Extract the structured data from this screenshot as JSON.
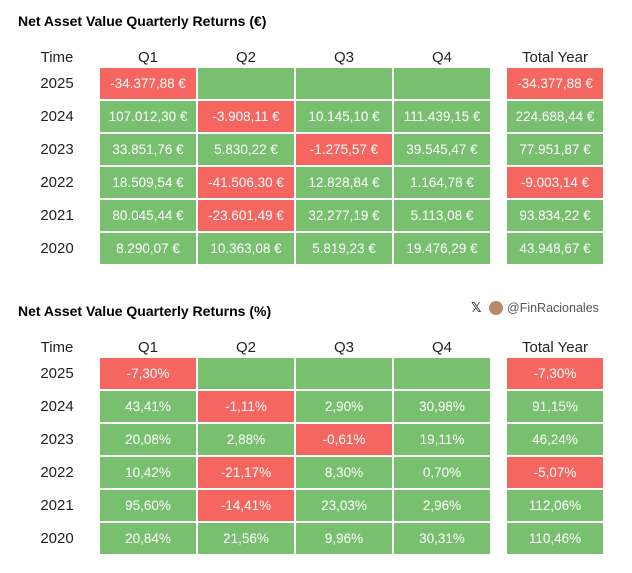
{
  "tables": [
    {
      "title": "Net Asset Value Quarterly Returns (€)",
      "headers": [
        "Time",
        "Q1",
        "Q2",
        "Q3",
        "Q4",
        "Total Year"
      ],
      "rows": [
        {
          "year": "2025",
          "cells": [
            "-34.377,88 €",
            null,
            null,
            null,
            "-34.377,88 €"
          ]
        },
        {
          "year": "2024",
          "cells": [
            "107.012,30 €",
            "-3.908,11 €",
            "10.145,10 €",
            "111.439,15 €",
            "224.688,44 €"
          ]
        },
        {
          "year": "2023",
          "cells": [
            "33.851,76 €",
            "5.830,22 €",
            "-1.275,57 €",
            "39.545,47 €",
            "77.951,87 €"
          ]
        },
        {
          "year": "2022",
          "cells": [
            "18.509,54 €",
            "-41.506,30 €",
            "12.828,84 €",
            "1.164,78 €",
            "-9.003,14 €"
          ]
        },
        {
          "year": "2021",
          "cells": [
            "80.045,44 €",
            "-23.601,49 €",
            "32.277,19 €",
            "5.113,08 €",
            "93.834,22 €"
          ]
        },
        {
          "year": "2020",
          "cells": [
            "8.290,07 €",
            "10.363,08 €",
            "5.819,23 €",
            "19.476,29 €",
            "43.948,67 €"
          ]
        }
      ]
    },
    {
      "title": "Net Asset Value Quarterly Returns (%)",
      "headers": [
        "Time",
        "Q1",
        "Q2",
        "Q3",
        "Q4",
        "Total Year"
      ],
      "rows": [
        {
          "year": "2025",
          "cells": [
            "-7,30%",
            null,
            null,
            null,
            "-7,30%"
          ]
        },
        {
          "year": "2024",
          "cells": [
            "43,41%",
            "-1,11%",
            "2,90%",
            "30,98%",
            "91,15%"
          ]
        },
        {
          "year": "2023",
          "cells": [
            "20,08%",
            "2,88%",
            "-0,61%",
            "19,11%",
            "46,24%"
          ]
        },
        {
          "year": "2022",
          "cells": [
            "10,42%",
            "-21,17%",
            "8,30%",
            "0,70%",
            "-5,07%"
          ]
        },
        {
          "year": "2021",
          "cells": [
            "95,60%",
            "-14,41%",
            "23,03%",
            "2,96%",
            "112,06%"
          ]
        },
        {
          "year": "2020",
          "cells": [
            "20,84%",
            "21,56%",
            "9,96%",
            "30,31%",
            "110,46%"
          ]
        }
      ]
    }
  ],
  "watermark": "@FinRacionales"
}
